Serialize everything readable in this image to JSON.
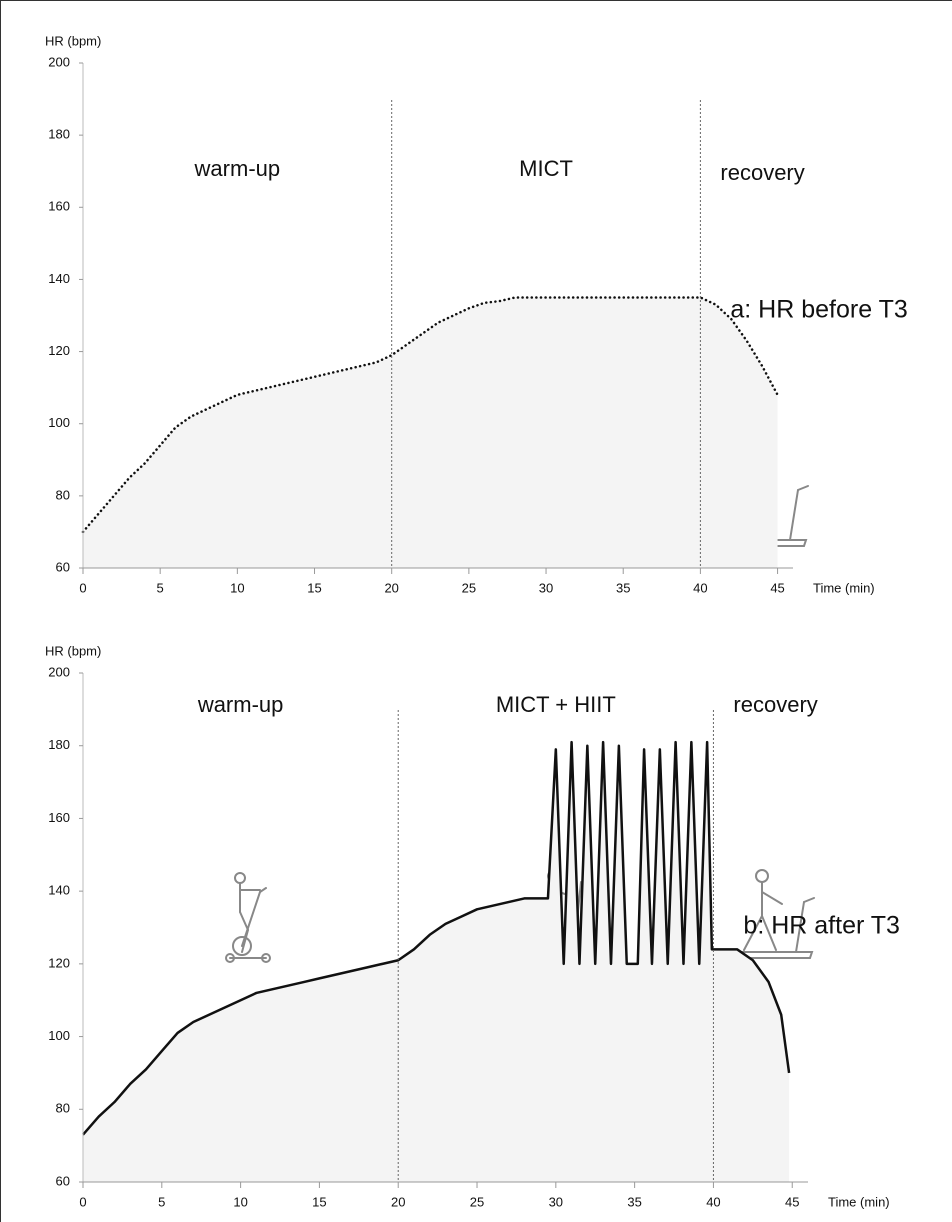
{
  "chart_data": [
    {
      "type": "line",
      "ylabel": "HR (bpm)",
      "xlabel": "Time (min)",
      "xlim": [
        0,
        46
      ],
      "ylim": [
        60,
        200
      ],
      "xticks": [
        0,
        5,
        10,
        15,
        20,
        25,
        30,
        35,
        40,
        45
      ],
      "yticks": [
        60,
        80,
        100,
        120,
        140,
        160,
        180,
        200
      ],
      "phases": [
        "warm-up",
        "MICT",
        "recovery"
      ],
      "phase_bounds": [
        20,
        40
      ],
      "x": [
        0,
        1,
        2,
        3,
        4,
        5,
        6,
        7,
        8,
        9,
        10,
        11,
        12,
        13,
        14,
        15,
        16,
        17,
        18,
        19,
        20,
        21,
        22,
        23,
        24,
        25,
        26,
        27,
        28,
        29,
        30,
        31,
        32,
        33,
        34,
        35,
        36,
        37,
        38,
        39,
        40,
        41,
        42,
        43,
        44,
        45
      ],
      "series": [
        {
          "name": "a: HR before T3",
          "color": "#111111",
          "line_style": "dotted",
          "values": [
            70,
            75,
            80,
            85,
            89,
            94,
            99,
            102,
            104,
            106,
            108,
            109,
            110,
            111,
            112,
            113,
            114,
            115,
            116,
            117,
            119,
            122,
            125,
            128,
            130,
            132,
            133.5,
            134,
            135,
            135,
            135,
            135,
            135,
            135,
            135,
            135,
            135,
            135,
            135,
            135,
            135,
            133,
            129,
            123,
            116,
            108
          ]
        }
      ]
    },
    {
      "type": "line",
      "ylabel": "HR (bpm)",
      "xlabel": "Time (min)",
      "xlim": [
        0,
        46
      ],
      "ylim": [
        60,
        200
      ],
      "xticks": [
        0,
        5,
        10,
        15,
        20,
        25,
        30,
        35,
        40,
        45
      ],
      "yticks": [
        60,
        80,
        100,
        120,
        140,
        160,
        180,
        200
      ],
      "phases": [
        "warm-up",
        "MICT + HIIT",
        "recovery"
      ],
      "phase_bounds": [
        20,
        40
      ],
      "x": [
        0,
        1,
        2,
        3,
        4,
        5,
        6,
        7,
        8,
        9,
        10,
        11,
        12,
        13,
        14,
        15,
        16,
        17,
        18,
        19,
        20,
        21,
        22,
        23,
        24,
        25,
        26,
        27,
        28,
        29.5,
        30,
        30.5,
        31,
        31.5,
        32,
        32.5,
        33,
        33.5,
        34,
        34.5,
        35.2,
        35.6,
        36.1,
        36.6,
        37.1,
        37.6,
        38.1,
        38.6,
        39.1,
        39.6,
        39.9,
        41.5,
        42.5,
        43.5,
        44.3,
        44.8
      ],
      "series": [
        {
          "name": "b: HR after T3",
          "color": "#111111",
          "line_style": "solid",
          "values": [
            73,
            78,
            82,
            87,
            91,
            96,
            101,
            104,
            106,
            108,
            110,
            112,
            113,
            114,
            115,
            116,
            117,
            118,
            119,
            120,
            121,
            124,
            128,
            131,
            133,
            135,
            136,
            137,
            138,
            138,
            179,
            120,
            181,
            120,
            180,
            120,
            181,
            120,
            180,
            120,
            120,
            179,
            120,
            179,
            120,
            181,
            120,
            181,
            120,
            181,
            124,
            124,
            121,
            115,
            106,
            90
          ]
        }
      ]
    }
  ]
}
